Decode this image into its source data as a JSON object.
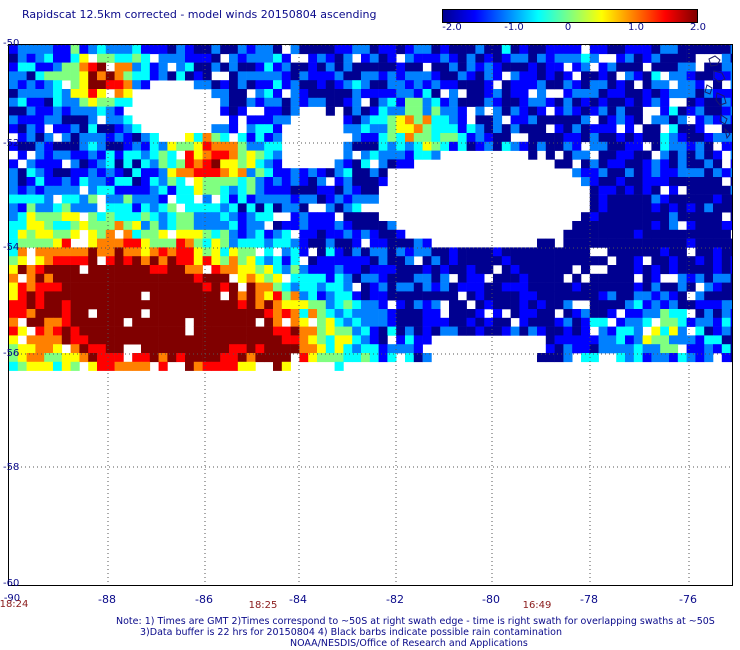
{
  "title": "Rapidscat 12.5km corrected - model winds 20150804 ascending",
  "colorbar": {
    "ticks": [
      "-2.0",
      "-1.0",
      "0",
      "1.0",
      "2.0"
    ],
    "colors": [
      "#000090",
      "#0000ff",
      "#0080ff",
      "#00ffff",
      "#80ff80",
      "#ffff00",
      "#ff8000",
      "#ff0000",
      "#800000"
    ]
  },
  "axes": {
    "lat_labels": [
      "-50",
      "-52",
      "-54",
      "-56",
      "-58",
      "-60"
    ],
    "lon_labels": [
      "-88",
      "-86",
      "-84",
      "-82",
      "-80",
      "-78",
      "-76"
    ],
    "corner_lon": "-90",
    "corner_time": "18:24"
  },
  "times": [
    "18:25",
    "16:49"
  ],
  "notes": {
    "line1": "Note: 1) Times are GMT 2)Times correspond to ~50S at right swath edge - time is right swath for overlapping swaths at ~50S",
    "line2": "3)Data buffer is 22 hrs for 20150804 4) Black barbs indicate possible rain contamination",
    "line3": "NOAA/NESDIS/Office of Research and Applications"
  }
}
